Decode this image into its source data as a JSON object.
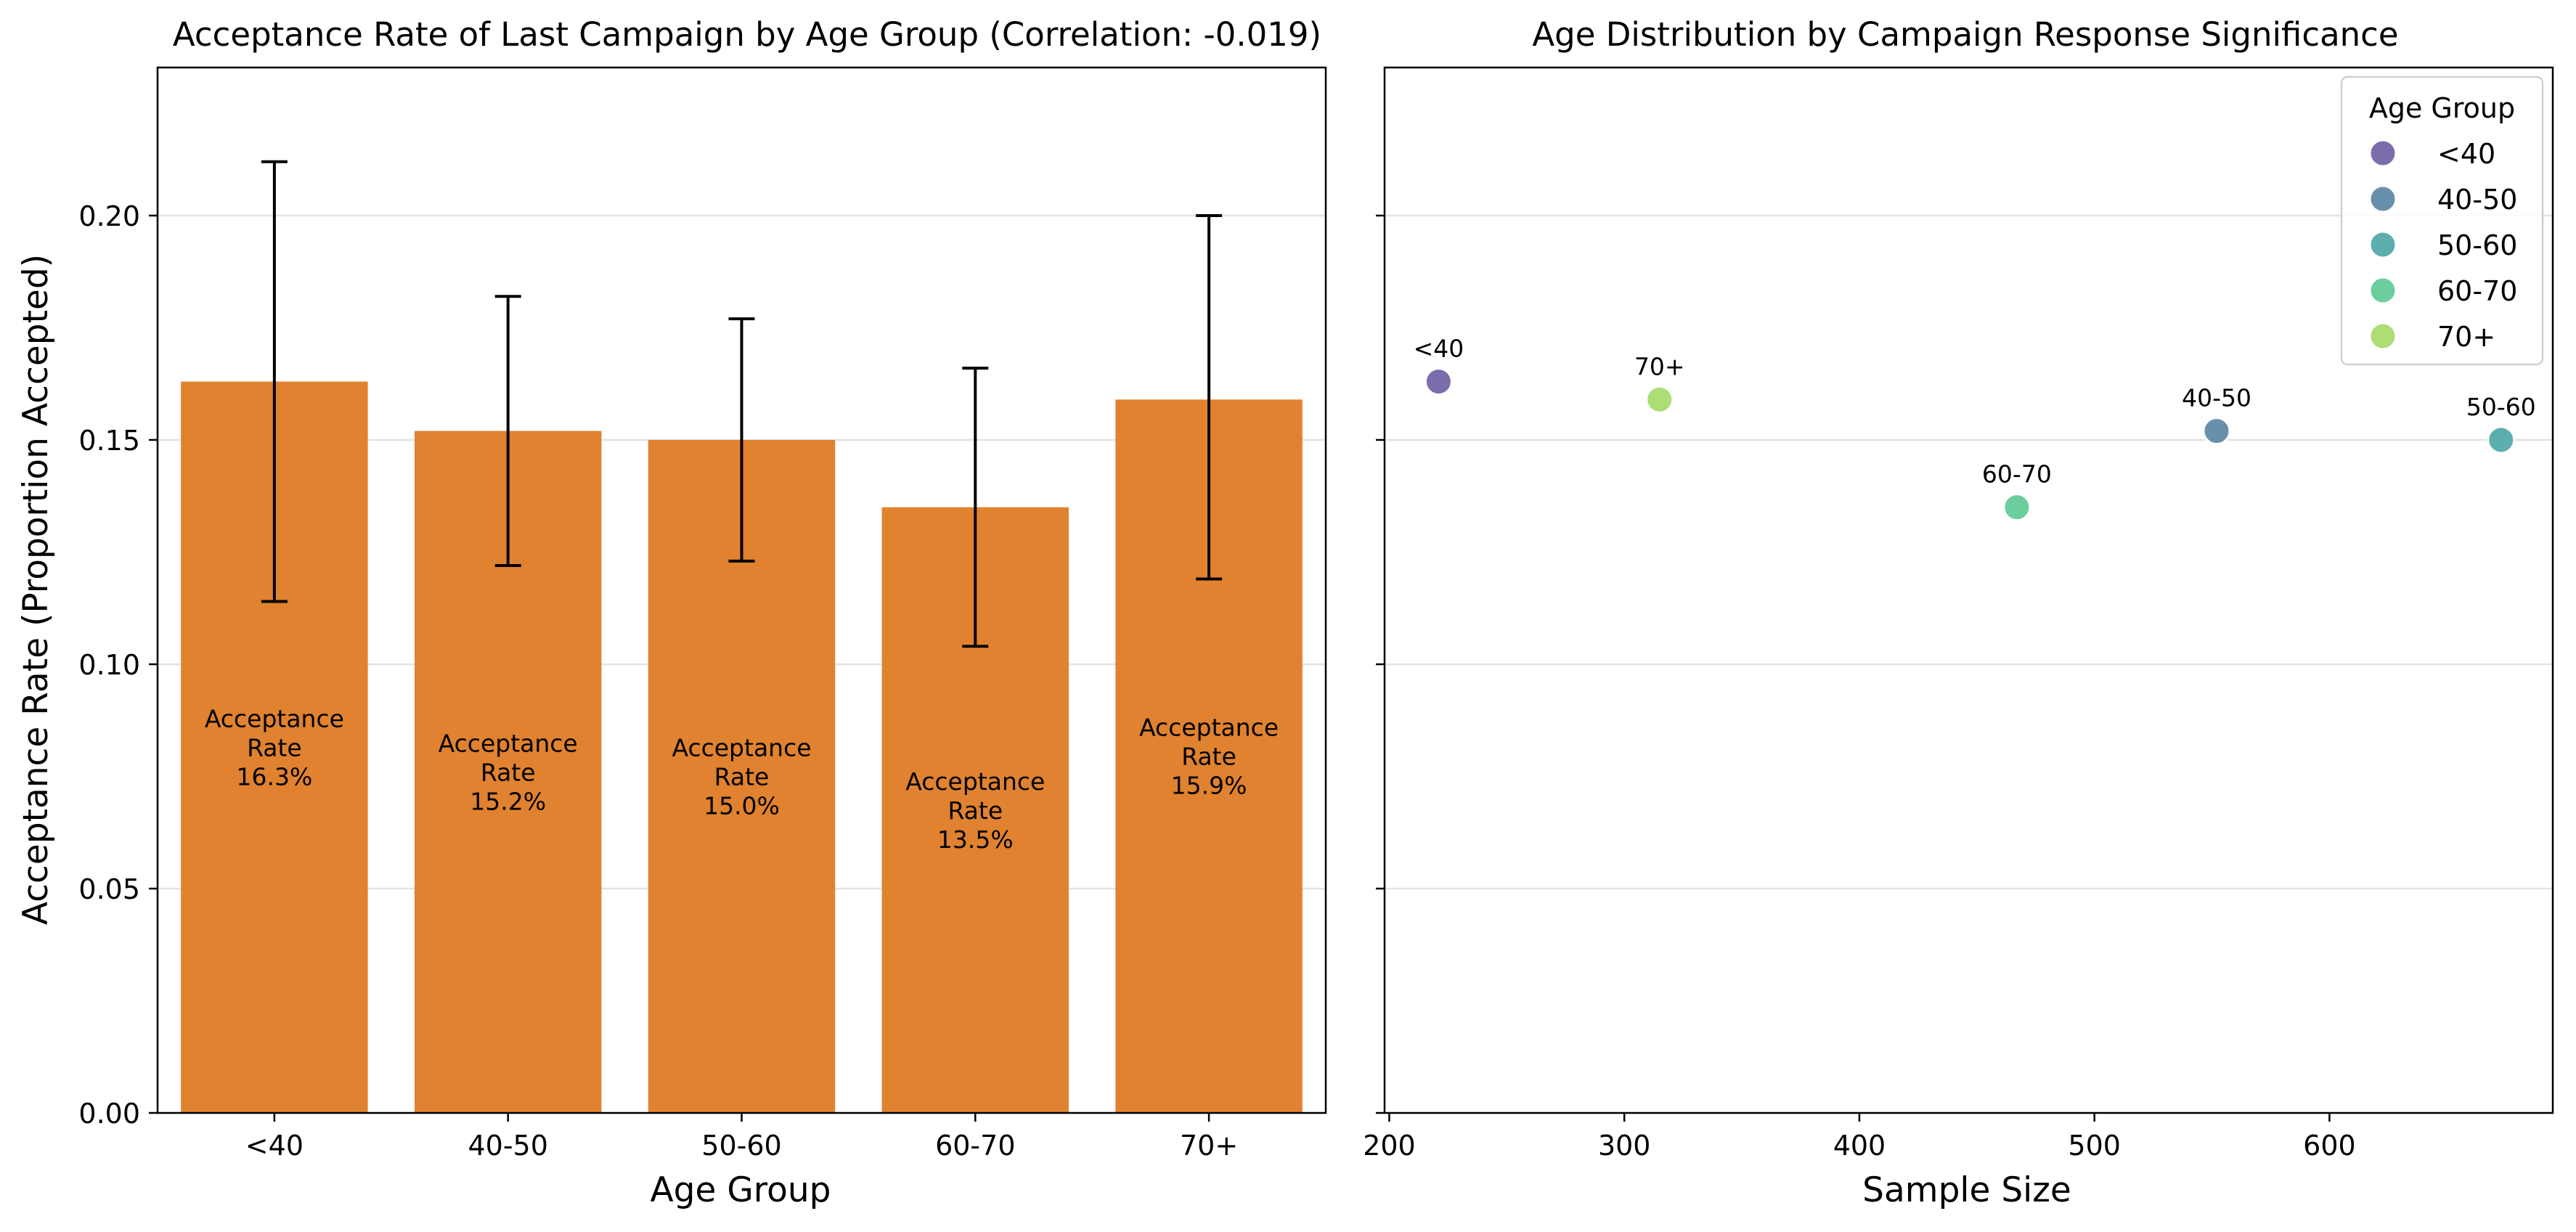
{
  "chart_data": [
    {
      "type": "bar",
      "title": "Acceptance Rate of Last Campaign by Age Group (Correlation: -0.019)",
      "xlabel": "Age Group",
      "ylabel": "Acceptance Rate (Proportion Accepted)",
      "categories": [
        "<40",
        "40-50",
        "50-60",
        "60-70",
        "70+"
      ],
      "values": [
        0.163,
        0.152,
        0.15,
        0.135,
        0.159
      ],
      "error_low": [
        0.114,
        0.122,
        0.123,
        0.104,
        0.119
      ],
      "error_high": [
        0.212,
        0.182,
        0.177,
        0.166,
        0.2
      ],
      "bar_labels": [
        [
          "Acceptance",
          "Rate",
          "16.3%"
        ],
        [
          "Acceptance",
          "Rate",
          "15.2%"
        ],
        [
          "Acceptance",
          "Rate",
          "15.0%"
        ],
        [
          "Acceptance",
          "Rate",
          "13.5%"
        ],
        [
          "Acceptance",
          "Rate",
          "15.9%"
        ]
      ],
      "ylim": [
        0,
        0.233
      ],
      "yticks": [
        0.0,
        0.05,
        0.1,
        0.15,
        0.2
      ],
      "ytick_labels": [
        "0.00",
        "0.05",
        "0.10",
        "0.15",
        "0.20"
      ],
      "grid": "y",
      "color": "#e0822f"
    },
    {
      "type": "scatter",
      "title": "Age Distribution by Campaign Response Significance",
      "xlabel": "Sample Size",
      "ylabel": "",
      "xlim": [
        198,
        695
      ],
      "ylim": [
        0,
        0.233
      ],
      "xticks": [
        200,
        300,
        400,
        500,
        600
      ],
      "xtick_labels": [
        "200",
        "300",
        "400",
        "500",
        "600"
      ],
      "yticks": [
        0.0,
        0.05,
        0.1,
        0.15,
        0.2
      ],
      "grid": "y",
      "points": [
        {
          "label": "<40",
          "x": 221,
          "y": 0.163,
          "color": "#7b6dab"
        },
        {
          "label": "40-50",
          "x": 552,
          "y": 0.152,
          "color": "#6890ac"
        },
        {
          "label": "50-60",
          "x": 673,
          "y": 0.15,
          "color": "#5daeaf"
        },
        {
          "label": "60-70",
          "x": 467,
          "y": 0.135,
          "color": "#6cce9c"
        },
        {
          "label": "70+",
          "x": 315,
          "y": 0.159,
          "color": "#acde73"
        }
      ],
      "legend": {
        "title": "Age Group",
        "position": "top-right",
        "entries": [
          {
            "label": "<40",
            "color": "#7b6dab"
          },
          {
            "label": "40-50",
            "color": "#6890ac"
          },
          {
            "label": "50-60",
            "color": "#5daeaf"
          },
          {
            "label": "60-70",
            "color": "#6cce9c"
          },
          {
            "label": "70+",
            "color": "#acde73"
          }
        ]
      }
    }
  ]
}
